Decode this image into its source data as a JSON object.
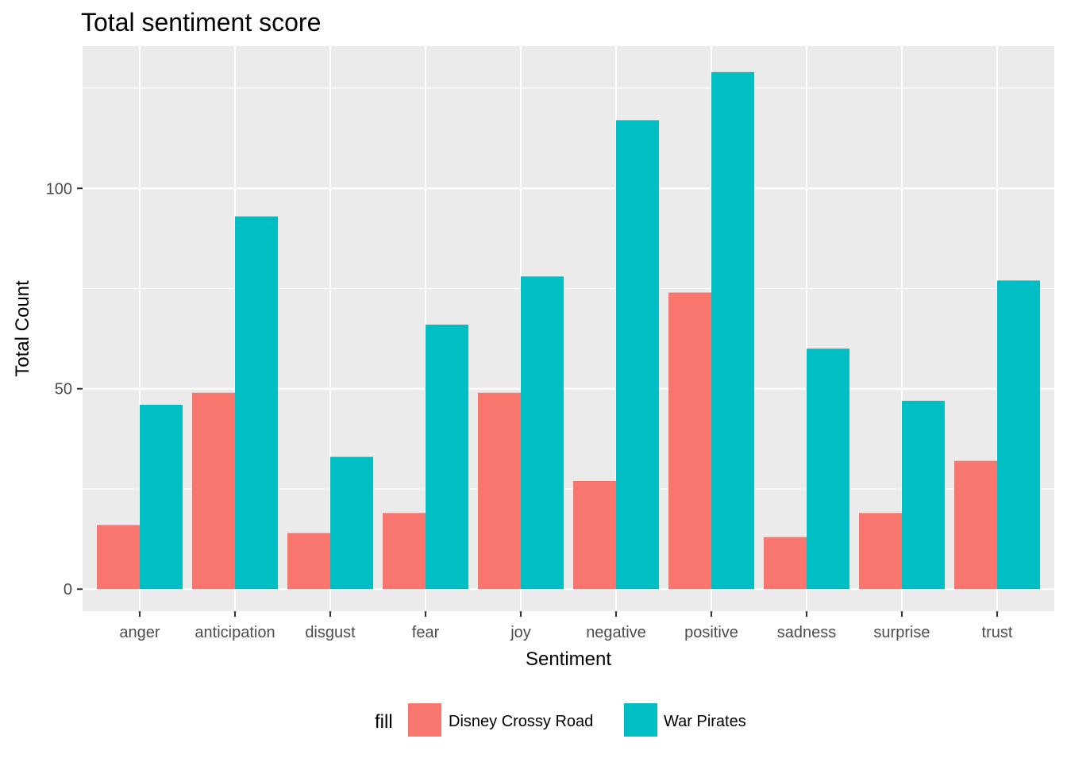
{
  "chart_data": {
    "type": "bar",
    "title": "Total sentiment score",
    "xlabel": "Sentiment",
    "ylabel": "Total Count",
    "categories": [
      "anger",
      "anticipation",
      "disgust",
      "fear",
      "joy",
      "negative",
      "positive",
      "sadness",
      "surprise",
      "trust"
    ],
    "series": [
      {
        "name": "Disney Crossy Road",
        "color": "#F8766D",
        "values": [
          16,
          49,
          14,
          19,
          49,
          27,
          74,
          13,
          19,
          32
        ]
      },
      {
        "name": "War Pirates",
        "color": "#00BFC4",
        "values": [
          46,
          93,
          33,
          66,
          78,
          117,
          129,
          60,
          47,
          77
        ]
      }
    ],
    "ylim": [
      -5.5,
      135.5
    ],
    "yticks": [
      0,
      50,
      100
    ],
    "grid": true,
    "legend": {
      "title": "fill",
      "position": "bottom"
    },
    "panel_background": "#EBEBEB"
  }
}
